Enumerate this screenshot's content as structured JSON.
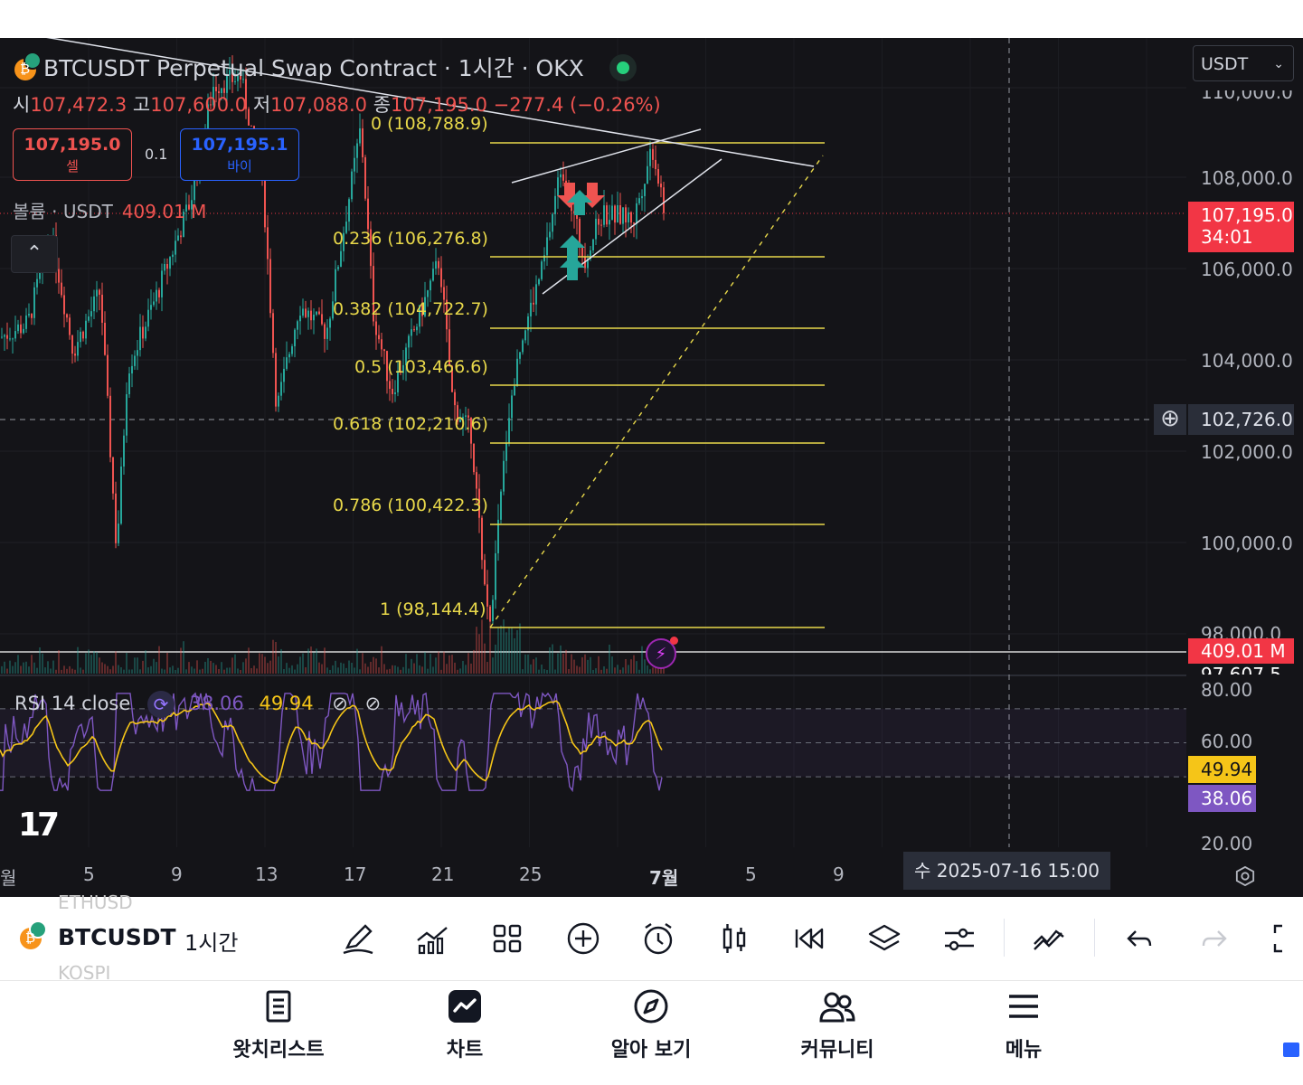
{
  "header": {
    "title": "BTCUSDT Perpetual Swap Contract · 1시간 · OKX",
    "ohlc": {
      "open_label": "시",
      "open": "107,472.3",
      "high_label": "고",
      "high": "107,600.0",
      "low_label": "저",
      "low": "107,088.0",
      "close_label": "종",
      "close": "107,195.0",
      "change": "−277.4 (−0.26%)"
    },
    "sell": {
      "price": "107,195.0",
      "label": "셀"
    },
    "spread": "0.1",
    "buy": {
      "price": "107,195.1",
      "label": "바이"
    },
    "volume_label": "볼륨 · USDT",
    "volume_value": "409.01 M",
    "collapse_icon": "chevron-up-icon"
  },
  "currency_select": {
    "value": "USDT"
  },
  "price_axis": {
    "labels": [
      "110,000.0",
      "108,000.0",
      "106,000.0",
      "104,000.0",
      "102,000.0",
      "100,000.0",
      "98,000.0",
      "97,607.5"
    ],
    "last_price": "107,195.0",
    "countdown": "34:01",
    "crosshair_price": "102,726.0",
    "volume_tag": "409.01 M"
  },
  "fib_levels": [
    {
      "label": "0 (108,788.9)"
    },
    {
      "label": "0.236 (106,276.8)"
    },
    {
      "label": "0.382 (104,722.7)"
    },
    {
      "label": "0.5 (103,466.6)"
    },
    {
      "label": "0.618 (102,210.6)"
    },
    {
      "label": "0.786 (100,422.3)"
    },
    {
      "label": "1 (98,144.4)"
    }
  ],
  "rsi": {
    "label": "RSI 14 close",
    "value_a": "38.06",
    "value_b": "49.94",
    "axis": [
      "80.00",
      "60.00",
      "20.00"
    ],
    "colors": {
      "rsi": "#7e57c2",
      "ma": "#f5c518"
    }
  },
  "time_axis": {
    "labels": [
      "월",
      "5",
      "9",
      "13",
      "17",
      "21",
      "25",
      "7월",
      "5",
      "9"
    ],
    "crosshair_date": "수 2025-07-16   15:00"
  },
  "toolbar": {
    "symbol": "BTCUSDT",
    "symbol_prev": "ETHUSD",
    "symbol_next": "KOSPI",
    "timeframe": "1시간",
    "tools": [
      "draw-icon",
      "indicators-icon",
      "layout-icon",
      "add-icon",
      "alert-icon",
      "candle-type-icon",
      "replay-icon",
      "layers-icon",
      "settings-icon",
      "trend-icon",
      "undo-icon",
      "redo-icon",
      "fullscreen-icon"
    ]
  },
  "bottom_nav": [
    {
      "label": "왓치리스트",
      "icon": "watchlist-icon"
    },
    {
      "label": "차트",
      "icon": "chart-icon"
    },
    {
      "label": "알아 보기",
      "icon": "explore-icon"
    },
    {
      "label": "커뮤니티",
      "icon": "community-icon"
    },
    {
      "label": "메뉴",
      "icon": "menu-icon"
    }
  ],
  "colors": {
    "background": "#141418",
    "up": "#26a69a",
    "down": "#ef5350",
    "fib": "#e8d84a",
    "accent_blue": "#2962ff"
  }
}
